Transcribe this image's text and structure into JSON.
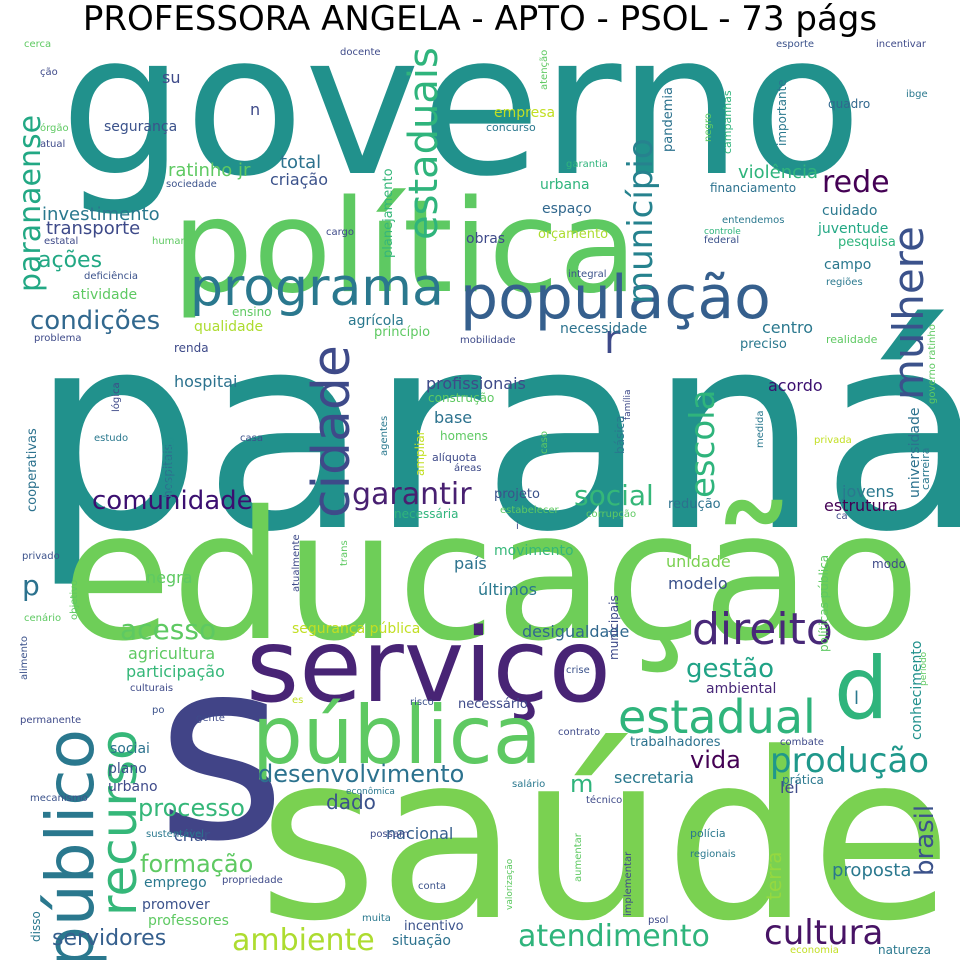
{
  "title": "PROFESSORA ANGELA - APTO - PSOL - 73 págs",
  "colors": {
    "background": "#ffffff",
    "palette": [
      "#440154",
      "#3b528b",
      "#21908d",
      "#5dc963",
      "#fde725"
    ]
  },
  "words": [
    {
      "t": "paraná",
      "c": "#21918c"
    },
    {
      "t": "saúde",
      "c": "#7ad151"
    },
    {
      "t": "governo",
      "c": "#21918c"
    },
    {
      "t": "educação",
      "c": "#6ece58"
    },
    {
      "t": "política",
      "c": "#5ec962"
    },
    {
      "t": "serviço",
      "c": "#482475"
    },
    {
      "t": "s",
      "c": "#414487"
    },
    {
      "t": "pública",
      "c": "#5ec962"
    },
    {
      "t": "público",
      "c": "#2a788e"
    },
    {
      "t": "população",
      "c": "#355f8d"
    },
    {
      "t": "programa",
      "c": "#2a788e"
    },
    {
      "t": "cidade",
      "c": "#3e4a89"
    },
    {
      "t": "mulhere",
      "c": "#3b528b"
    },
    {
      "t": "recurso",
      "c": "#35b779"
    },
    {
      "t": "d",
      "c": "#2fb47c"
    },
    {
      "t": "direito",
      "c": "#482878"
    },
    {
      "t": "estadual",
      "c": "#2fb47c"
    },
    {
      "t": "estaduais",
      "c": "#2fb47c"
    },
    {
      "t": "município",
      "c": "#26828e"
    },
    {
      "t": "escola",
      "c": "#2fb47c"
    },
    {
      "t": "paranaense",
      "c": "#22a884"
    },
    {
      "t": "produção",
      "c": "#1f988b"
    },
    {
      "t": "cultura",
      "c": "#471365"
    },
    {
      "t": "atendimento",
      "c": "#2fb47c"
    },
    {
      "t": "ambiente",
      "c": "#addc30"
    },
    {
      "t": "desenvolvimento",
      "c": "#2c728e"
    },
    {
      "t": "acesso",
      "c": "#5ec962"
    },
    {
      "t": "garantir",
      "c": "#482071"
    },
    {
      "t": "comunidade",
      "c": "#3b0f70"
    },
    {
      "t": "social",
      "c": "#35b779"
    },
    {
      "t": "gestão",
      "c": "#20a386"
    },
    {
      "t": "rede",
      "c": "#440154"
    },
    {
      "t": "condições",
      "c": "#31688e"
    },
    {
      "t": "processo",
      "c": "#35b779"
    },
    {
      "t": "formação",
      "c": "#5ec962"
    },
    {
      "t": "brasil",
      "c": "#3b528b"
    },
    {
      "t": "ações",
      "c": "#22a884"
    },
    {
      "t": "r",
      "c": "#3e4a89"
    },
    {
      "t": "p",
      "c": "#2c728e"
    },
    {
      "t": "servidores",
      "c": "#355f8d"
    },
    {
      "t": "vida",
      "c": "#440154"
    },
    {
      "t": "m",
      "c": "#2fb47c"
    },
    {
      "t": "dado",
      "c": "#3b528b"
    },
    {
      "t": "proposta",
      "c": "#2a788e"
    },
    {
      "t": "terra",
      "c": "#95d840"
    },
    {
      "t": "violência",
      "c": "#2fb47c"
    },
    {
      "t": "investimento",
      "c": "#2a788e"
    },
    {
      "t": "transporte",
      "c": "#3e4a89"
    },
    {
      "t": "total",
      "c": "#2c728e"
    },
    {
      "t": "ratinho jr",
      "c": "#5ec962"
    },
    {
      "t": "criação",
      "c": "#3b528b"
    },
    {
      "t": "estrutura",
      "c": "#440154"
    },
    {
      "t": "jovens",
      "c": "#2a788e"
    },
    {
      "t": "secretaria",
      "c": "#2a788e"
    },
    {
      "t": "nacional",
      "c": "#355f8d"
    },
    {
      "t": "criar",
      "c": "#3b528b"
    },
    {
      "t": "lei",
      "c": "#3e4a89"
    },
    {
      "t": "universidade",
      "c": "#2c728e"
    },
    {
      "t": "conhecimento",
      "c": "#21918c"
    },
    {
      "t": "agricultura",
      "c": "#5ec962"
    },
    {
      "t": "participação",
      "c": "#35b779"
    },
    {
      "t": "desigualdade",
      "c": "#31688e"
    },
    {
      "t": "segurança pública",
      "c": "#c2df23"
    },
    {
      "t": "país",
      "c": "#2c728e"
    },
    {
      "t": "movimento",
      "c": "#35b779"
    },
    {
      "t": "unidade",
      "c": "#7ad151"
    },
    {
      "t": "modelo",
      "c": "#3b528b"
    },
    {
      "t": "últimos",
      "c": "#2a788e"
    },
    {
      "t": "negra",
      "c": "#5ec962"
    },
    {
      "t": "hospitai",
      "c": "#2c728e"
    },
    {
      "t": "acordo",
      "c": "#3b0f70"
    },
    {
      "t": "centro",
      "c": "#2a788e"
    },
    {
      "t": "campo",
      "c": "#2a788e"
    },
    {
      "t": "cuidado",
      "c": "#2a788e"
    },
    {
      "t": "juventude",
      "c": "#22a884"
    },
    {
      "t": "pesquisa",
      "c": "#2fb47c"
    },
    {
      "t": "obras",
      "c": "#3e4a89"
    },
    {
      "t": "orçamento",
      "c": "#addc30"
    },
    {
      "t": "espaço",
      "c": "#31688e"
    },
    {
      "t": "urbana",
      "c": "#2fb47c"
    },
    {
      "t": "atividade",
      "c": "#5ec962"
    },
    {
      "t": "qualidade",
      "c": "#addc30"
    },
    {
      "t": "agrícola",
      "c": "#2a788e"
    },
    {
      "t": "necessidade",
      "c": "#2c728e"
    },
    {
      "t": "profissionais",
      "c": "#3e4a89"
    },
    {
      "t": "base",
      "c": "#2c728e"
    },
    {
      "t": "construção",
      "c": "#5ec962"
    },
    {
      "t": "empresa",
      "c": "#c2df23"
    },
    {
      "t": "concurso",
      "c": "#2a788e"
    },
    {
      "t": "segurança",
      "c": "#3b528b"
    },
    {
      "t": "su",
      "c": "#3e4a89"
    },
    {
      "t": "n",
      "c": "#3e4a89"
    },
    {
      "t": "financiamento",
      "c": "#2c728e"
    },
    {
      "t": "quadro",
      "c": "#31688e"
    },
    {
      "t": "importante",
      "c": "#2a788e"
    },
    {
      "t": "pandemia",
      "c": "#2c728e"
    },
    {
      "t": "planejamento",
      "c": "#35b779"
    },
    {
      "t": "campanhas",
      "c": "#2fb47c"
    },
    {
      "t": "negro",
      "c": "#5ec962"
    },
    {
      "t": "ambiental",
      "c": "#482878"
    },
    {
      "t": "emprego",
      "c": "#2a788e"
    },
    {
      "t": "promover",
      "c": "#3b528b"
    },
    {
      "t": "professores",
      "c": "#5ec962"
    },
    {
      "t": "situação",
      "c": "#2c728e"
    },
    {
      "t": "incentivo",
      "c": "#3b528b"
    },
    {
      "t": "sociai",
      "c": "#2c728e"
    },
    {
      "t": "plano",
      "c": "#3b528b"
    },
    {
      "t": "urbano",
      "c": "#3e4a89"
    },
    {
      "t": "trabalhadores",
      "c": "#2c728e"
    },
    {
      "t": "redução",
      "c": "#2c728e"
    },
    {
      "t": "projeto",
      "c": "#3b528b"
    },
    {
      "t": "necessária",
      "c": "#2fb47c"
    },
    {
      "t": "básica",
      "c": "#2a788e"
    },
    {
      "t": "homens",
      "c": "#5ec962"
    },
    {
      "t": "alíquota",
      "c": "#3e4a89"
    },
    {
      "t": "ampliar",
      "c": "#c2df23"
    },
    {
      "t": "cooperativas",
      "c": "#2c728e"
    },
    {
      "t": "hospitais",
      "c": "#2c728e"
    },
    {
      "t": "estudo",
      "c": "#2a788e"
    },
    {
      "t": "casa",
      "c": "#3b528b"
    },
    {
      "t": "aumento",
      "c": "#21918c"
    },
    {
      "t": "renda",
      "c": "#3e4a89"
    },
    {
      "t": "princípio",
      "c": "#5ec962"
    },
    {
      "t": "ensino",
      "c": "#5ec962"
    },
    {
      "t": "mobilidade",
      "c": "#3e4a89"
    },
    {
      "t": "preciso",
      "c": "#2a788e"
    },
    {
      "t": "realidade",
      "c": "#5ec962"
    },
    {
      "t": "governo ratinho",
      "c": "#5ec962"
    },
    {
      "t": "regiões",
      "c": "#2a788e"
    },
    {
      "t": "integral",
      "c": "#3b528b"
    },
    {
      "t": "federal",
      "c": "#3b528b"
    },
    {
      "t": "controle",
      "c": "#2fb47c"
    },
    {
      "t": "entendemos",
      "c": "#2a788e"
    },
    {
      "t": "garantia",
      "c": "#2fb47c"
    },
    {
      "t": "sociedade",
      "c": "#3b528b"
    },
    {
      "t": "deficiência",
      "c": "#3b528b"
    },
    {
      "t": "humano",
      "c": "#5ec962"
    },
    {
      "t": "estatal",
      "c": "#3e4a89"
    },
    {
      "t": "cargo",
      "c": "#3e4a89"
    },
    {
      "t": "problema",
      "c": "#3e4a89"
    },
    {
      "t": "órgão",
      "c": "#5ec962"
    },
    {
      "t": "atual",
      "c": "#3e4a89"
    },
    {
      "t": "cerca",
      "c": "#5ec962"
    },
    {
      "t": "ção",
      "c": "#3e4a89"
    },
    {
      "t": "docente",
      "c": "#3e4a89"
    },
    {
      "t": "atenção",
      "c": "#5ec962"
    },
    {
      "t": "esporte",
      "c": "#3b528b"
    },
    {
      "t": "incentivar",
      "c": "#3e4a89"
    },
    {
      "t": "ibge",
      "c": "#2a788e"
    },
    {
      "t": "privado",
      "c": "#3b528b"
    },
    {
      "t": "objetivo",
      "c": "#5ec962"
    },
    {
      "t": "cenário",
      "c": "#5ec962"
    },
    {
      "t": "alimento",
      "c": "#3b528b"
    },
    {
      "t": "culturais",
      "c": "#3e4a89"
    },
    {
      "t": "po",
      "c": "#3b528b"
    },
    {
      "t": "gente",
      "c": "#3e4a89"
    },
    {
      "t": "es",
      "c": "#c2df23"
    },
    {
      "t": "risco",
      "c": "#3b528b"
    },
    {
      "t": "crise",
      "c": "#3b528b"
    },
    {
      "t": "contrato",
      "c": "#3e4a89"
    },
    {
      "t": "combate",
      "c": "#3e4a89"
    },
    {
      "t": "prática",
      "c": "#2a788e"
    },
    {
      "t": "técnico",
      "c": "#3e4a89"
    },
    {
      "t": "salário",
      "c": "#2a788e"
    },
    {
      "t": "econômica",
      "c": "#2a788e"
    },
    {
      "t": "possam",
      "c": "#3e4a89"
    },
    {
      "t": "sustentável",
      "c": "#2a788e"
    },
    {
      "t": "mecanismo",
      "c": "#3b528b"
    },
    {
      "t": "permanente",
      "c": "#3e4a89"
    },
    {
      "t": "propriedade",
      "c": "#3e4a89"
    },
    {
      "t": "conta",
      "c": "#3b528b"
    },
    {
      "t": "muita",
      "c": "#2a788e"
    },
    {
      "t": "polícia",
      "c": "#2a788e"
    },
    {
      "t": "regionais",
      "c": "#2a788e"
    },
    {
      "t": "economia",
      "c": "#c2df23"
    },
    {
      "t": "natureza",
      "c": "#2a788e"
    },
    {
      "t": "psol",
      "c": "#3e4a89"
    },
    {
      "t": "aumentar",
      "c": "#5ec962"
    },
    {
      "t": "valorização",
      "c": "#5ec962"
    },
    {
      "t": "implementar",
      "c": "#3e4a89"
    },
    {
      "t": "disso",
      "c": "#2a788e"
    },
    {
      "t": "atualmente",
      "c": "#3e4a89"
    },
    {
      "t": "trans",
      "c": "#5ec962"
    },
    {
      "t": "municipais",
      "c": "#3e4a89"
    },
    {
      "t": "políticas pública",
      "c": "#5ec962"
    },
    {
      "t": "carreira",
      "c": "#2a788e"
    },
    {
      "t": "privada",
      "c": "#c2df23"
    },
    {
      "t": "medida",
      "c": "#2a788e"
    },
    {
      "t": "família",
      "c": "#3e4a89"
    },
    {
      "t": "lógica",
      "c": "#3e4a89"
    },
    {
      "t": "agentes",
      "c": "#2a788e"
    },
    {
      "t": "caso",
      "c": "#5ec962"
    },
    {
      "t": "áreas",
      "c": "#3e4a89"
    },
    {
      "t": "estabelecer",
      "c": "#5ec962"
    },
    {
      "t": "corrupção",
      "c": "#5ec962"
    },
    {
      "t": "período",
      "c": "#5ec962"
    },
    {
      "t": "ca",
      "c": "#3e4a89"
    },
    {
      "t": "i",
      "c": "#3e4a89"
    },
    {
      "t": "l",
      "c": "#2a788e"
    },
    {
      "t": "modo",
      "c": "#3e4a89"
    },
    {
      "t": "necessário",
      "c": "#3e4a89"
    }
  ]
}
